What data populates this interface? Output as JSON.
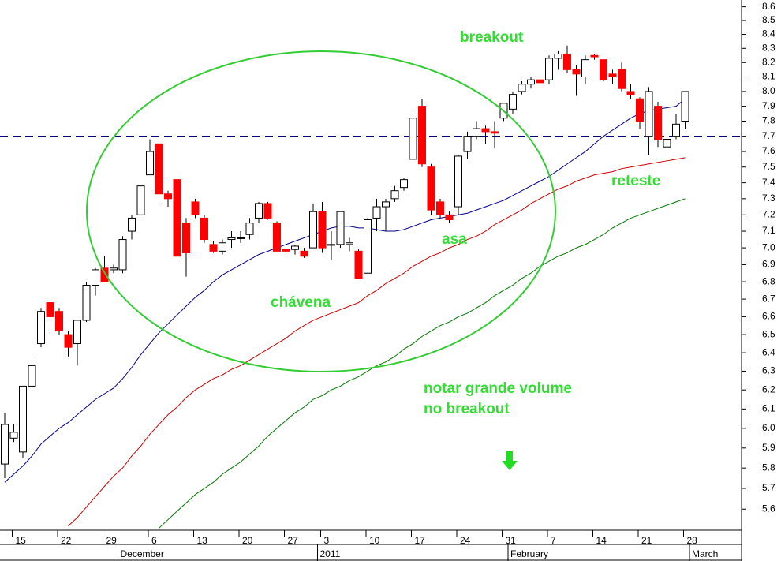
{
  "chart_data": {
    "type": "candlestick",
    "log_scale": true,
    "ylim": [
      5.5,
      8.65
    ],
    "yticks": [
      5.6,
      5.7,
      5.8,
      5.9,
      {
        "value": 6,
        "label": "6.0"
      },
      6.1,
      6.2,
      6.3,
      6.4,
      6.5,
      6.6,
      6.7,
      6.8,
      6.9,
      {
        "value": 7,
        "label": "7.0"
      },
      7.1,
      7.2,
      7.3,
      7.4,
      7.5,
      7.6,
      7.7,
      7.8,
      7.9,
      {
        "value": 8,
        "label": "8.0"
      },
      8.1,
      8.2,
      8.3,
      8.4,
      8.5,
      8.6
    ],
    "categories": [
      null,
      "15",
      null,
      null,
      null,
      null,
      "22",
      null,
      null,
      null,
      null,
      "29",
      null,
      null,
      null,
      null,
      "6",
      null,
      null,
      null,
      null,
      "13",
      null,
      null,
      null,
      null,
      "20",
      null,
      null,
      null,
      null,
      "27",
      null,
      null,
      null,
      "3",
      null,
      null,
      null,
      null,
      "10",
      null,
      null,
      null,
      null,
      "17",
      null,
      null,
      null,
      null,
      "24",
      null,
      null,
      null,
      null,
      "31",
      null,
      null,
      null,
      null,
      "7",
      null,
      null,
      null,
      null,
      "14",
      null,
      null,
      null,
      null,
      "21",
      null,
      null,
      null,
      null,
      "28",
      null
    ],
    "months": [
      null,
      null,
      null,
      null,
      null,
      null,
      null,
      null,
      null,
      null,
      null,
      null,
      null,
      "December",
      null,
      null,
      null,
      null,
      null,
      null,
      null,
      null,
      null,
      null,
      null,
      null,
      null,
      null,
      null,
      null,
      null,
      null,
      null,
      null,
      null,
      "2011",
      null,
      null,
      null,
      null,
      null,
      null,
      null,
      null,
      null,
      null,
      null,
      null,
      null,
      null,
      null,
      null,
      null,
      null,
      null,
      null,
      "February",
      null,
      null,
      null,
      null,
      null,
      null,
      null,
      null,
      null,
      null,
      null,
      null,
      null,
      null,
      null,
      null,
      null,
      null,
      null,
      "March"
    ],
    "up_color": "#ffffff",
    "down_color": "#ff0000",
    "open": [
      5.82,
      5.95,
      5.88,
      6.22,
      6.45,
      6.68,
      6.63,
      6.5,
      6.45,
      6.58,
      6.78,
      6.88,
      6.87,
      6.87,
      7.1,
      7.2,
      7.45,
      7.65,
      7.33,
      7.42,
      7.15,
      7.28,
      7.18,
      7.02,
      6.98,
      7.05,
      7.06,
      7.08,
      7.18,
      7.27,
      7.15,
      6.99,
      6.99,
      6.98,
      7.0,
      7.22,
      7.02,
      7.02,
      7.02,
      6.98,
      6.85,
      7.18,
      7.25,
      7.3,
      7.37,
      7.55,
      7.9,
      7.5,
      7.28,
      7.2,
      7.25,
      7.6,
      7.7,
      7.75,
      7.73,
      7.82,
      7.88,
      8.0,
      8.05,
      8.08,
      8.08,
      8.23,
      8.26,
      8.15,
      8.1,
      8.25,
      8.22,
      8.12,
      8.15,
      8.0,
      7.95,
      7.7,
      7.9,
      7.63,
      7.7,
      7.8,
      null
    ],
    "high": [
      6.08,
      6.02,
      6.22,
      6.38,
      6.65,
      6.71,
      6.65,
      6.52,
      6.58,
      6.8,
      6.88,
      6.95,
      6.9,
      7.07,
      7.2,
      7.38,
      7.68,
      7.7,
      7.35,
      7.47,
      7.18,
      7.3,
      7.2,
      7.04,
      7.05,
      7.1,
      7.1,
      7.18,
      7.28,
      7.28,
      7.16,
      7.02,
      7.02,
      7.0,
      7.27,
      7.28,
      7.1,
      7.22,
      7.06,
      6.99,
      7.18,
      7.3,
      7.3,
      7.38,
      7.43,
      7.88,
      7.95,
      7.52,
      7.3,
      7.22,
      7.58,
      7.73,
      7.8,
      7.77,
      7.8,
      7.92,
      8.0,
      8.07,
      8.1,
      8.1,
      8.25,
      8.28,
      8.32,
      8.18,
      8.25,
      8.26,
      8.22,
      8.15,
      8.2,
      8.05,
      7.96,
      8.03,
      7.93,
      7.7,
      7.85,
      8.0,
      null
    ],
    "low": [
      5.75,
      5.93,
      5.85,
      6.2,
      6.43,
      6.52,
      6.5,
      6.38,
      6.33,
      6.57,
      6.72,
      6.8,
      6.85,
      6.85,
      7.05,
      7.2,
      7.45,
      7.27,
      7.25,
      6.93,
      6.83,
      7.18,
      7.03,
      6.97,
      6.96,
      7.0,
      7.03,
      7.05,
      7.15,
      7.17,
      6.98,
      6.97,
      6.96,
      6.94,
      7.0,
      6.97,
      6.93,
      7.0,
      6.98,
      6.82,
      6.85,
      7.1,
      7.1,
      7.28,
      7.35,
      7.55,
      7.5,
      7.2,
      7.18,
      7.15,
      7.2,
      7.55,
      7.68,
      7.65,
      7.62,
      7.8,
      7.85,
      7.98,
      8.02,
      8.05,
      8.05,
      8.15,
      8.13,
      7.97,
      8.05,
      8.22,
      8.07,
      8.05,
      8.0,
      7.95,
      7.75,
      7.58,
      7.63,
      7.6,
      7.68,
      7.75,
      null
    ],
    "close": [
      6.02,
      5.98,
      6.22,
      6.33,
      6.63,
      6.6,
      6.52,
      6.43,
      6.58,
      6.78,
      6.87,
      6.8,
      6.88,
      7.05,
      7.18,
      7.38,
      7.6,
      7.33,
      7.3,
      6.95,
      6.97,
      7.2,
      7.05,
      6.98,
      7.03,
      7.06,
      7.06,
      7.15,
      7.27,
      7.18,
      6.98,
      6.98,
      7.01,
      6.95,
      7.22,
      7.0,
      7.02,
      7.22,
      7.03,
      6.82,
      7.17,
      7.25,
      7.28,
      7.35,
      7.42,
      7.82,
      7.52,
      7.23,
      7.2,
      7.17,
      7.57,
      7.7,
      7.75,
      7.73,
      7.72,
      7.92,
      7.98,
      8.05,
      8.08,
      8.06,
      8.23,
      8.26,
      8.15,
      8.12,
      8.22,
      8.24,
      8.08,
      8.1,
      8.02,
      7.98,
      7.8,
      8.0,
      7.68,
      7.68,
      7.78,
      8.0,
      null
    ],
    "series": [
      {
        "color": "#00008b",
        "values": [
          5.73,
          5.77,
          5.81,
          5.86,
          5.92,
          5.96,
          6.0,
          6.03,
          6.07,
          6.11,
          6.15,
          6.18,
          6.21,
          6.26,
          6.32,
          6.39,
          6.45,
          6.51,
          6.56,
          6.61,
          6.66,
          6.71,
          6.75,
          6.8,
          6.84,
          6.87,
          6.9,
          6.93,
          6.96,
          6.98,
          7.0,
          7.02,
          7.04,
          7.06,
          7.08,
          7.1,
          7.12,
          7.13,
          7.13,
          7.12,
          7.12,
          7.11,
          7.1,
          7.1,
          7.11,
          7.13,
          7.15,
          7.17,
          7.18,
          7.19,
          7.2,
          7.21,
          7.23,
          7.25,
          7.27,
          7.29,
          7.32,
          7.35,
          7.38,
          7.41,
          7.44,
          7.48,
          7.52,
          7.56,
          7.6,
          7.65,
          7.7,
          7.74,
          7.78,
          7.82,
          7.85,
          7.87,
          7.88,
          7.89,
          7.9,
          7.95,
          null
        ]
      },
      {
        "color": "#cc0000",
        "values": [
          null,
          null,
          null,
          null,
          null,
          null,
          null,
          5.52,
          5.56,
          5.61,
          5.66,
          5.71,
          5.76,
          5.8,
          5.86,
          5.91,
          5.97,
          6.02,
          6.07,
          6.11,
          6.16,
          6.2,
          6.23,
          6.26,
          6.28,
          6.31,
          6.33,
          6.36,
          6.39,
          6.42,
          6.45,
          6.48,
          6.52,
          6.55,
          6.58,
          6.6,
          6.62,
          6.64,
          6.66,
          6.68,
          6.72,
          6.75,
          6.79,
          6.82,
          6.85,
          6.89,
          6.92,
          6.95,
          6.97,
          7.0,
          7.02,
          7.05,
          7.07,
          7.1,
          7.14,
          7.17,
          7.2,
          7.23,
          7.27,
          7.3,
          7.33,
          7.36,
          7.38,
          7.41,
          7.43,
          7.45,
          7.46,
          7.47,
          7.49,
          7.5,
          7.51,
          7.52,
          7.53,
          7.54,
          7.55,
          7.56,
          null
        ]
      },
      {
        "color": "#007700",
        "values": [
          null,
          null,
          null,
          null,
          null,
          null,
          null,
          null,
          null,
          null,
          null,
          null,
          null,
          null,
          null,
          null,
          null,
          5.51,
          5.55,
          5.59,
          5.63,
          5.67,
          5.7,
          5.73,
          5.77,
          5.8,
          5.83,
          5.87,
          5.91,
          5.96,
          6.0,
          6.04,
          6.08,
          6.11,
          6.15,
          6.17,
          6.2,
          6.22,
          6.25,
          6.27,
          6.3,
          6.33,
          6.35,
          6.38,
          6.42,
          6.45,
          6.49,
          6.52,
          6.55,
          6.57,
          6.6,
          6.62,
          6.65,
          6.68,
          6.72,
          6.75,
          6.78,
          6.82,
          6.85,
          6.89,
          6.92,
          6.95,
          6.97,
          7.0,
          7.02,
          7.05,
          7.08,
          7.12,
          7.15,
          7.18,
          7.2,
          7.22,
          7.24,
          7.26,
          7.28,
          7.3,
          null
        ]
      }
    ],
    "hline": 7.7,
    "hline_color": "#000080",
    "annotations": [
      "breakout",
      "asa",
      "chávena",
      "reteste",
      "notar grande volume",
      "no breakout"
    ]
  }
}
